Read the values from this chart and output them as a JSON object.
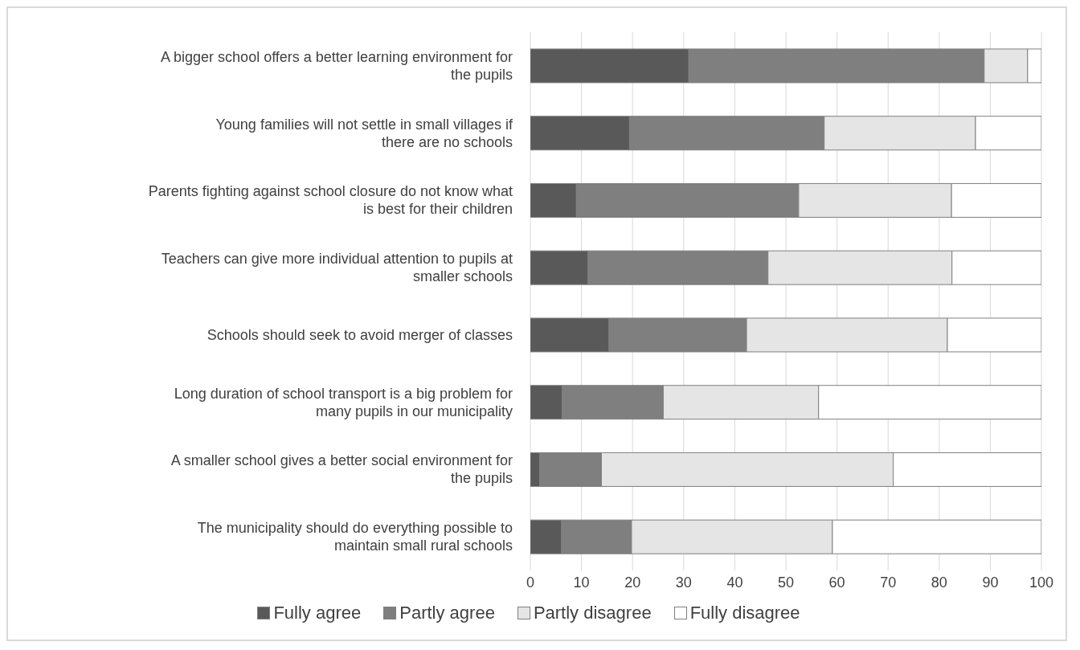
{
  "chart_data": {
    "type": "bar",
    "orientation": "horizontal",
    "stacked": true,
    "categories": [
      "A bigger school offers a better learning environment for the pupils",
      "Young families will not settle in small villages if there are no schools",
      "Parents fighting against school closure do not know what is best for their children",
      "Teachers can give more individual attention to pupils at smaller schools",
      "Schools should seek to avoid merger of classes",
      "Long duration of school transport is a big problem for many pupils in our municipality",
      "A smaller school gives a better social environment for the pupils",
      "The municipality should do everything possible to maintain small rural schools"
    ],
    "series": [
      {
        "name": "Fully agree",
        "color": "#595959",
        "values": [
          31,
          19.4,
          9,
          11.3,
          15.4,
          6.2,
          1.8,
          6.1
        ]
      },
      {
        "name": "Partly agree",
        "color": "#7f7f7f",
        "values": [
          57.8,
          38.1,
          43.5,
          35.2,
          26.9,
          19.8,
          12.1,
          13.7
        ]
      },
      {
        "name": "Partly disagree",
        "color": "#e5e5e5",
        "values": [
          8.5,
          29.6,
          29.9,
          36,
          39.3,
          30.4,
          57.1,
          39.3
        ]
      },
      {
        "name": "Fully disagree",
        "color": "#ffffff",
        "values": [
          2.7,
          12.9,
          17.6,
          17.5,
          18.4,
          43.6,
          29,
          40.9
        ]
      }
    ],
    "xlim": [
      0,
      100
    ],
    "xticks": [
      0,
      10,
      20,
      30,
      40,
      50,
      60,
      70,
      80,
      90,
      100
    ],
    "grid": "x",
    "legend": "bottom"
  }
}
